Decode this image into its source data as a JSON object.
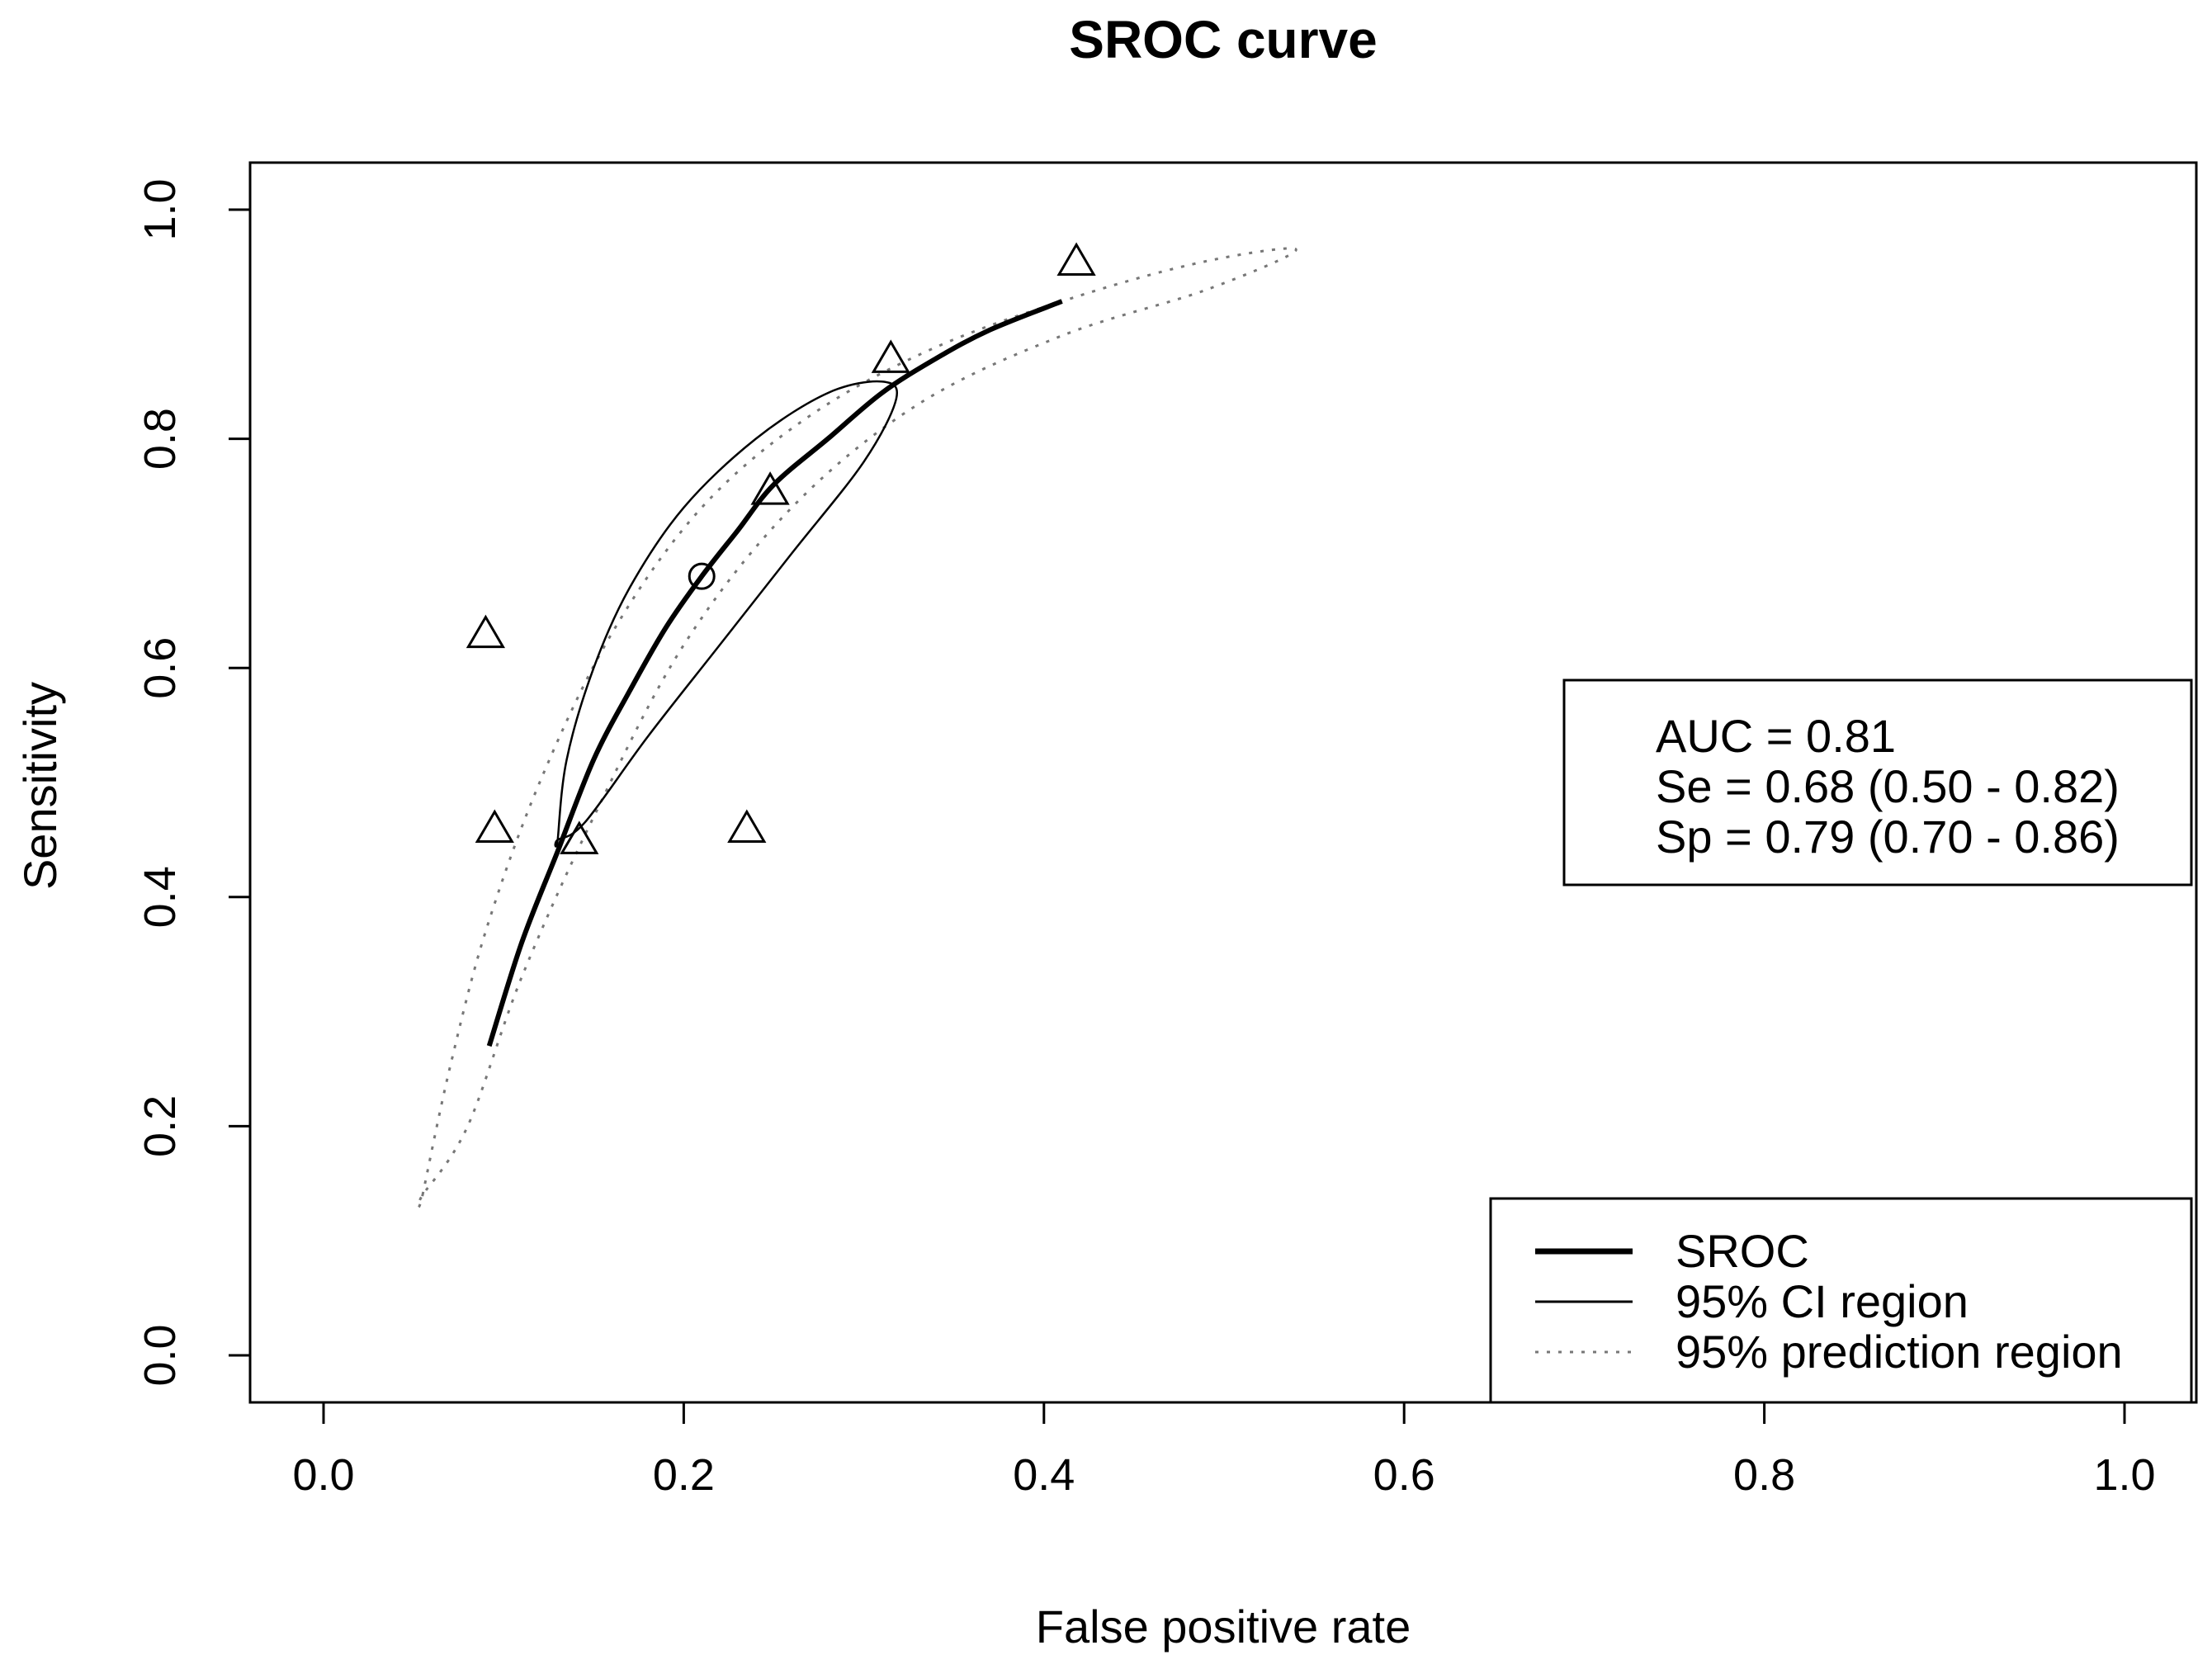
{
  "chart_data": {
    "type": "line",
    "title": "SROC curve",
    "xlabel": "False positive rate",
    "ylabel": "Sensitivity",
    "xlim": [
      0.0,
      1.0
    ],
    "ylim": [
      0.0,
      1.0
    ],
    "xticks": [
      "0.0",
      "0.2",
      "0.4",
      "0.6",
      "0.8",
      "1.0"
    ],
    "yticks": [
      "0.0",
      "0.2",
      "0.4",
      "0.6",
      "0.8",
      "1.0"
    ],
    "grid": false,
    "sroc_curve": {
      "name": "SROC",
      "x": [
        0.092,
        0.11,
        0.13,
        0.15,
        0.17,
        0.19,
        0.21,
        0.23,
        0.25,
        0.28,
        0.31,
        0.34,
        0.37,
        0.41
      ],
      "y": [
        0.27,
        0.36,
        0.44,
        0.52,
        0.58,
        0.635,
        0.68,
        0.72,
        0.76,
        0.8,
        0.84,
        0.87,
        0.895,
        0.92
      ]
    },
    "ci_region": {
      "name": "95% CI region",
      "x": [
        0.13,
        0.135,
        0.15,
        0.17,
        0.2,
        0.24,
        0.28,
        0.31,
        0.318,
        0.3,
        0.26,
        0.22,
        0.18,
        0.145,
        0.13
      ],
      "y": [
        0.45,
        0.52,
        0.6,
        0.67,
        0.74,
        0.8,
        0.84,
        0.85,
        0.835,
        0.78,
        0.7,
        0.62,
        0.54,
        0.465,
        0.45
      ]
    },
    "prediction_region": {
      "name": "95% prediction region",
      "x": [
        0.055,
        0.07,
        0.09,
        0.12,
        0.16,
        0.21,
        0.27,
        0.34,
        0.42,
        0.49,
        0.54,
        0.49,
        0.41,
        0.33,
        0.26,
        0.2,
        0.15,
        0.11,
        0.08,
        0.055
      ],
      "y": [
        0.14,
        0.25,
        0.37,
        0.5,
        0.63,
        0.74,
        0.82,
        0.88,
        0.925,
        0.955,
        0.965,
        0.93,
        0.89,
        0.83,
        0.74,
        0.62,
        0.47,
        0.33,
        0.2,
        0.14
      ]
    },
    "study_points": {
      "marker": "triangle",
      "x": [
        0.09,
        0.095,
        0.142,
        0.235,
        0.248,
        0.315,
        0.418
      ],
      "y": [
        0.63,
        0.46,
        0.45,
        0.46,
        0.755,
        0.87,
        0.955
      ]
    },
    "summary_point": {
      "marker": "circle",
      "x": 0.21,
      "y": 0.68
    },
    "stats_box": {
      "lines": [
        "AUC = 0.81",
        "Se = 0.68 (0.50 - 0.82)",
        "Sp = 0.79 (0.70 - 0.86)"
      ],
      "placement": "right"
    },
    "legend": {
      "placement": "bottom-right",
      "entries": [
        {
          "label": "SROC",
          "style": "thick-solid"
        },
        {
          "label": "95% CI region",
          "style": "thin-solid"
        },
        {
          "label": "95% prediction region",
          "style": "dotted"
        }
      ]
    },
    "colors": {
      "ink": "#000000",
      "dotted": "#777777"
    }
  }
}
